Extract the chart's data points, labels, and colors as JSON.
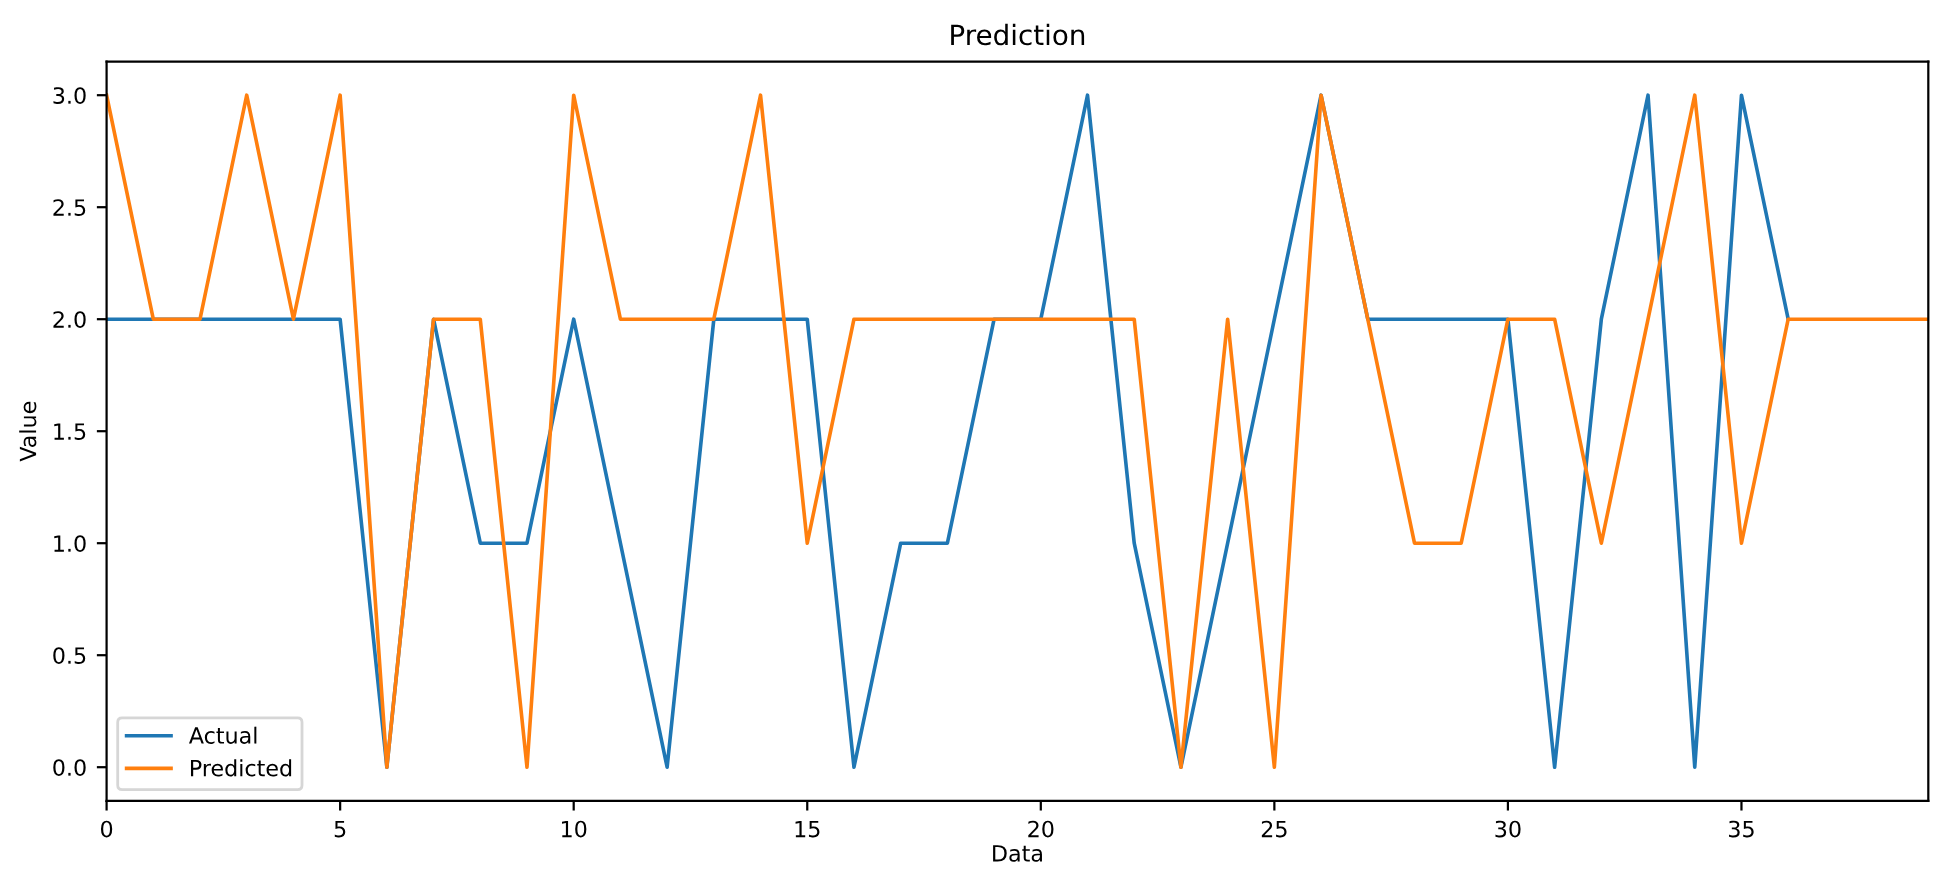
{
  "chart_data": {
    "type": "line",
    "title": "Prediction",
    "xlabel": "Data",
    "ylabel": "Value",
    "x": [
      0,
      1,
      2,
      3,
      4,
      5,
      6,
      7,
      8,
      9,
      10,
      11,
      12,
      13,
      14,
      15,
      16,
      17,
      18,
      19,
      20,
      21,
      22,
      23,
      24,
      25,
      26,
      27,
      28,
      29,
      30,
      31,
      32,
      33,
      34,
      35,
      36,
      37,
      38,
      39
    ],
    "series": [
      {
        "name": "Actual",
        "color": "#1f77b4",
        "values": [
          2,
          2,
          2,
          2,
          2,
          2,
          0,
          2,
          1,
          1,
          2,
          1,
          0,
          2,
          2,
          2,
          0,
          1,
          1,
          2,
          2,
          3,
          1,
          0,
          1,
          2,
          3,
          2,
          2,
          2,
          2,
          0,
          2,
          3,
          0,
          3,
          2,
          null,
          null,
          null
        ]
      },
      {
        "name": "Predicted",
        "color": "#ff7f0e",
        "values": [
          3,
          2,
          2,
          3,
          2,
          3,
          0,
          2,
          2,
          0,
          3,
          2,
          2,
          2,
          3,
          1,
          2,
          2,
          2,
          2,
          2,
          2,
          2,
          0,
          2,
          0,
          3,
          2,
          1,
          1,
          2,
          2,
          1,
          2,
          3,
          1,
          2,
          2,
          2,
          2
        ]
      }
    ],
    "xlim": [
      0,
      39
    ],
    "ylim": [
      -0.15,
      3.15
    ],
    "xticks": [
      0,
      5,
      10,
      15,
      20,
      25,
      30,
      35
    ],
    "yticks": [
      {
        "value": 0,
        "label": "0.0"
      },
      {
        "value": 0.5,
        "label": "0.5"
      },
      {
        "value": 1,
        "label": "1.0"
      },
      {
        "value": 1.5,
        "label": "1.5"
      },
      {
        "value": 2,
        "label": "2.0"
      },
      {
        "value": 2.5,
        "label": "2.5"
      },
      {
        "value": 3,
        "label": "3.0"
      }
    ],
    "grid": false,
    "legend": "lower left"
  }
}
